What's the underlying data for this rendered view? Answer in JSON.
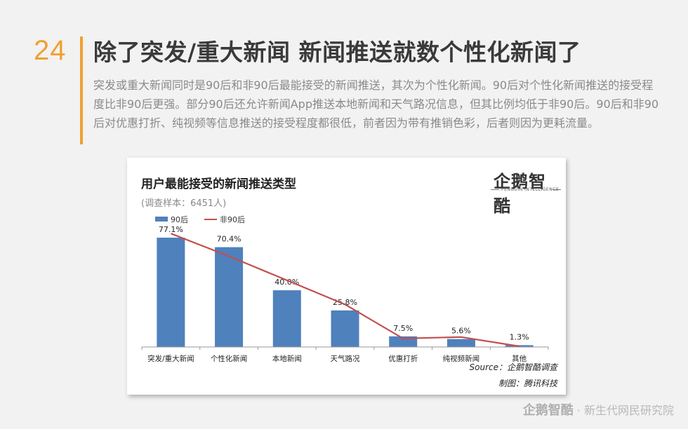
{
  "page": {
    "number": "24",
    "headline": "除了突发/重大新闻 新闻推送就数个性化新闻了",
    "intro": "突发或重大新闻同时是90后和非90后最能接受的新闻推送，其次为个性化新闻。90后对个性化新闻推送的接受程度比非90后更强。部分90后还允许新闻App推送本地新闻和天气路况信息，但其比例均低于非90后。90后和非90后对优惠打折、纯视频等信息推送的接受程度都很低，前者因为带有推销色彩，后者则因为更耗流量。",
    "accent_color": "#f0a030"
  },
  "logo": {
    "name": "企鹅智酷",
    "sub": "PENGUIN INTELLIGENCE"
  },
  "chart_data": {
    "type": "bar",
    "title": "用户最能接受的新闻推送类型",
    "subtitle": "(调查样本：6451人)",
    "categories": [
      "突发/重大新闻",
      "个性化新闻",
      "本地新闻",
      "天气路况",
      "优惠打折",
      "纯视频新闻",
      "其他"
    ],
    "series": [
      {
        "name": "90后",
        "kind": "bar",
        "color": "#4f81bd",
        "values": [
          77.1,
          70.4,
          40.0,
          25.8,
          7.5,
          5.6,
          1.3
        ],
        "labels": [
          "77.1%",
          "70.4%",
          "40.0%",
          "25.8%",
          "7.5%",
          "5.6%",
          "1.3%"
        ]
      },
      {
        "name": "非90后",
        "kind": "line",
        "color": "#c0504d",
        "values": [
          80.0,
          64.0,
          47.0,
          30.0,
          6.0,
          7.0,
          0.5
        ]
      }
    ],
    "ylim": [
      0,
      100
    ],
    "grid": false,
    "legend_position": "top-left"
  },
  "source": "Source：企鹅智酷调查",
  "credit": "制图：腾讯科技",
  "footer": {
    "brand": "企鹅智酷",
    "separator": "·",
    "tagline": "新生代网民研究院"
  }
}
